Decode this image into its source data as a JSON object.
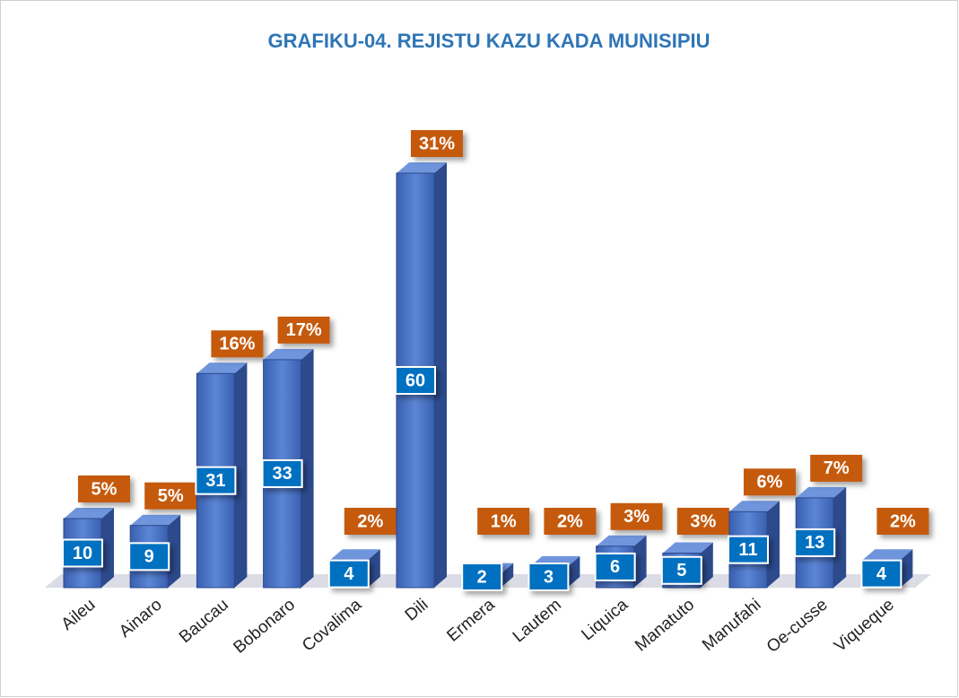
{
  "chart_data": {
    "type": "bar3d",
    "title": "GRAFIKU-04. REJISTU KAZU KADA MUNISIPIU",
    "categories": [
      "Aileu",
      "Ainaro",
      "Baucau",
      "Bobonaro",
      "Covalima",
      "Dili",
      "Ermera",
      "Lautem",
      "Liquica",
      "Manatuto",
      "Manufahi",
      "Oe-cusse",
      "Viqueque"
    ],
    "values": [
      10,
      9,
      31,
      33,
      4,
      60,
      2,
      3,
      6,
      5,
      11,
      13,
      4
    ],
    "shares": [
      5,
      5,
      16,
      17,
      2,
      31,
      1,
      2,
      3,
      3,
      6,
      7,
      2
    ],
    "share_labels": [
      "5%",
      "5%",
      "16%",
      "17%",
      "2%",
      "31%",
      "1%",
      "2%",
      "3%",
      "3%",
      "6%",
      "7%",
      "2%"
    ],
    "color": "#4472c4",
    "label_color": "#c55a11",
    "ylim": [
      0,
      60
    ]
  }
}
